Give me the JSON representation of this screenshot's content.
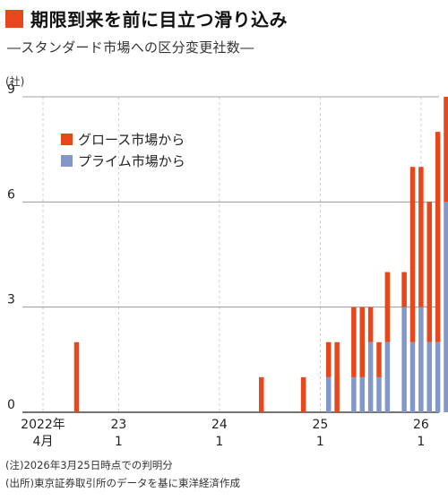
{
  "header": {
    "title": "期限到来を前に目立つ滑り込み",
    "subtitle": "―スタンダード市場への区分変更社数―"
  },
  "colors": {
    "growth": "#e8461b",
    "prime": "#8497c9",
    "title_mark": "#e8461b"
  },
  "footnotes": {
    "note": "(注)2026年3月25日時点での判明分",
    "source": "(出所)東京証券取引所のデータを基に東洋経済作成"
  },
  "chart_data": {
    "type": "bar",
    "stacked": true,
    "title": "期限到来を前に目立つ滑り込み",
    "subtitle": "―スタンダード市場への区分変更社数―",
    "ylabel": "(社)",
    "ylim": [
      0,
      9
    ],
    "yticks": [
      0,
      3,
      6,
      9
    ],
    "x_start_label": "2022年4月",
    "x_end_label": "2026年3月",
    "xticks": [
      {
        "index": 0,
        "line1": "2022年",
        "line2": "4月"
      },
      {
        "index": 9,
        "line1": "23",
        "line2": "1"
      },
      {
        "index": 21,
        "line1": "24",
        "line2": "1"
      },
      {
        "index": 33,
        "line1": "25",
        "line2": "1"
      },
      {
        "index": 45,
        "line1": "26",
        "line2": "1"
      }
    ],
    "legend_position": "top-left",
    "grid": "vertical",
    "series": [
      {
        "name": "グロース市場から",
        "color": "#e8461b",
        "values": [
          0,
          0,
          0,
          0,
          2,
          0,
          0,
          0,
          0,
          0,
          0,
          0,
          0,
          0,
          0,
          0,
          0,
          0,
          0,
          0,
          0,
          0,
          0,
          0,
          0,
          0,
          1,
          0,
          0,
          0,
          0,
          1,
          0,
          0,
          1,
          2,
          0,
          2,
          2,
          1,
          1,
          2,
          0,
          1,
          5,
          4,
          4,
          6,
          3
        ]
      },
      {
        "name": "プライム市場から",
        "color": "#8497c9",
        "values": [
          0,
          0,
          0,
          0,
          0,
          0,
          0,
          0,
          0,
          0,
          0,
          0,
          0,
          0,
          0,
          0,
          0,
          0,
          0,
          0,
          0,
          0,
          0,
          0,
          0,
          0,
          0,
          0,
          0,
          0,
          0,
          0,
          0,
          0,
          1,
          0,
          0,
          1,
          1,
          2,
          1,
          2,
          0,
          3,
          2,
          3,
          2,
          2,
          6
        ]
      }
    ]
  },
  "legend": {
    "growth": "グロース市場から",
    "prime": "プライム市場から"
  }
}
